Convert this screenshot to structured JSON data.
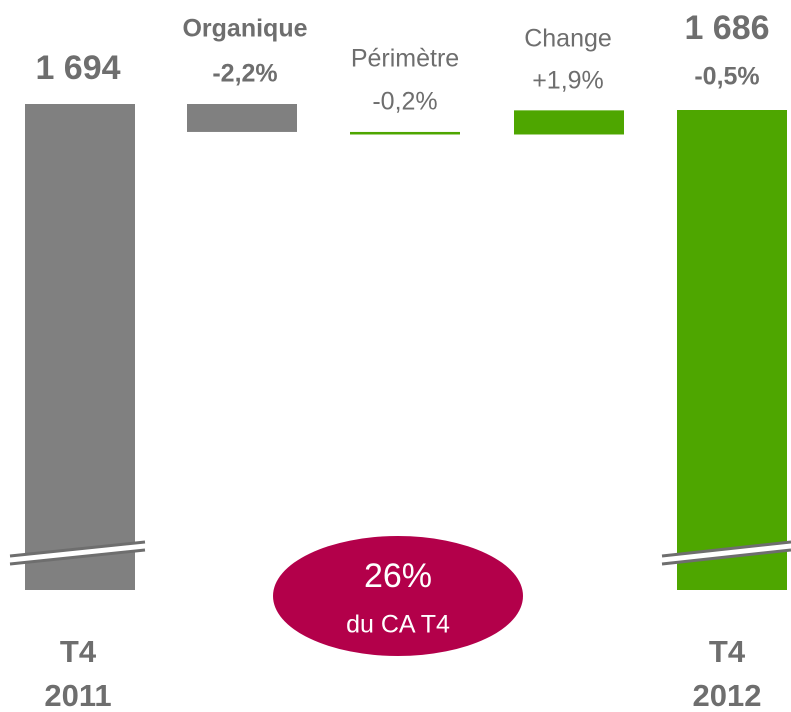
{
  "chart_data": {
    "type": "waterfall",
    "totals": {
      "categories": [
        "T4 2011",
        "T4 2012"
      ],
      "values": [
        1694,
        1686
      ],
      "value_labels": [
        "1 694",
        "1 686"
      ],
      "colors": [
        "#808080",
        "#4ea600"
      ],
      "change": -0.5,
      "change_label": "-0,5%"
    },
    "steps": {
      "categories": [
        "Organique",
        "Périmètre",
        "Change"
      ],
      "values": [
        -2.2,
        -0.2,
        1.9
      ],
      "value_labels": [
        "-2,2%",
        "-0,2%",
        "+1,9%"
      ],
      "colors": [
        "#808080",
        "#4ea600",
        "#4ea600"
      ]
    },
    "annotation": {
      "value": 26,
      "label": "26%",
      "text": "du CA T4",
      "color": "#b3004a"
    }
  }
}
